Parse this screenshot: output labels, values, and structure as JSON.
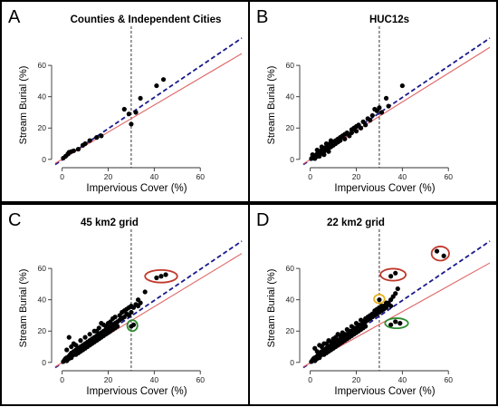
{
  "figure": {
    "panels": [
      "A",
      "B",
      "C",
      "D"
    ]
  },
  "chart_data": [
    {
      "panel": "A",
      "type": "scatter",
      "title": "Counties & Independent Cities",
      "xlabel": "Impervious Cover (%)",
      "ylabel": "Stream Burial (%)",
      "xlim": [
        -3,
        78
      ],
      "ylim": [
        -3,
        78
      ],
      "x_ticks": [
        0,
        20,
        40,
        60
      ],
      "y_ticks": [
        0,
        20,
        40,
        60
      ],
      "threshold_x": 30,
      "lines": [
        {
          "style": "dashed",
          "color": "#1a1a8c",
          "x": [
            -3,
            78
          ],
          "y": [
            -3.3,
            77.4
          ]
        },
        {
          "style": "solid",
          "color": "#e06666",
          "x": [
            -3,
            78
          ],
          "y": [
            -2.5,
            67.5
          ]
        }
      ],
      "points": [
        [
          0.5,
          0.8
        ],
        [
          1.5,
          2
        ],
        [
          2.5,
          3.5
        ],
        [
          3,
          4.5
        ],
        [
          4,
          5
        ],
        [
          5,
          5.5
        ],
        [
          7,
          6.5
        ],
        [
          9,
          9
        ],
        [
          10,
          10
        ],
        [
          12,
          12
        ],
        [
          15,
          14
        ],
        [
          17,
          15
        ],
        [
          27,
          32
        ],
        [
          29,
          29
        ],
        [
          30,
          22.5
        ],
        [
          32,
          30
        ],
        [
          34,
          39
        ],
        [
          41,
          47
        ],
        [
          44,
          51
        ]
      ],
      "point_color": "#000000",
      "highlights": []
    },
    {
      "panel": "B",
      "type": "scatter",
      "title": "HUC12s",
      "xlabel": "Impervious Cover (%)",
      "ylabel": "Stream Burial (%)",
      "xlim": [
        -3,
        78
      ],
      "ylim": [
        -3,
        78
      ],
      "x_ticks": [
        0,
        20,
        40,
        60
      ],
      "y_ticks": [
        0,
        20,
        40,
        60
      ],
      "threshold_x": 30,
      "lines": [
        {
          "style": "dashed",
          "color": "#1a1a8c",
          "x": [
            -3,
            78
          ],
          "y": [
            -3.3,
            77.4
          ]
        },
        {
          "style": "solid",
          "color": "#e06666",
          "x": [
            -3,
            78
          ],
          "y": [
            -2.8,
            71.5
          ]
        }
      ],
      "points": [
        [
          0.5,
          0.5
        ],
        [
          1,
          1.5
        ],
        [
          1.5,
          0.8
        ],
        [
          2,
          2.5
        ],
        [
          2.5,
          1.5
        ],
        [
          3,
          3.5
        ],
        [
          3,
          2
        ],
        [
          3.5,
          4
        ],
        [
          4,
          3
        ],
        [
          4,
          5
        ],
        [
          4.5,
          4.5
        ],
        [
          5,
          6
        ],
        [
          5,
          4
        ],
        [
          5.5,
          5.5
        ],
        [
          6,
          7
        ],
        [
          6,
          5
        ],
        [
          6.5,
          6.5
        ],
        [
          7,
          8
        ],
        [
          7,
          6
        ],
        [
          7.5,
          7.5
        ],
        [
          8,
          9
        ],
        [
          8,
          7
        ],
        [
          8.5,
          10
        ],
        [
          9,
          8
        ],
        [
          9.5,
          9.5
        ],
        [
          10,
          11
        ],
        [
          10,
          9
        ],
        [
          11,
          12
        ],
        [
          11,
          10
        ],
        [
          12,
          11
        ],
        [
          12,
          13
        ],
        [
          13,
          12
        ],
        [
          13,
          14
        ],
        [
          14,
          15
        ],
        [
          15,
          13
        ],
        [
          15,
          16
        ],
        [
          16,
          17
        ],
        [
          17,
          15
        ],
        [
          18,
          19
        ],
        [
          18,
          17
        ],
        [
          19,
          20
        ],
        [
          20,
          21
        ],
        [
          20,
          18
        ],
        [
          21,
          22
        ],
        [
          22,
          20
        ],
        [
          23,
          24
        ],
        [
          24,
          22
        ],
        [
          25,
          26
        ],
        [
          26,
          25
        ],
        [
          27,
          28
        ],
        [
          28,
          32
        ],
        [
          29,
          31
        ],
        [
          30,
          33
        ],
        [
          31,
          30
        ],
        [
          33,
          39
        ],
        [
          34,
          34
        ],
        [
          2,
          0.5
        ],
        [
          1,
          3
        ],
        [
          4,
          2
        ],
        [
          6,
          3
        ],
        [
          8,
          5
        ],
        [
          3,
          6
        ],
        [
          5,
          8
        ],
        [
          9,
          12
        ],
        [
          7,
          10
        ],
        [
          40,
          47
        ]
      ],
      "point_color": "#000000",
      "highlights": []
    },
    {
      "panel": "C",
      "type": "scatter",
      "title": "45 km2 grid",
      "xlabel": "Impervious Cover (%)",
      "ylabel": "Stream Burial (%)",
      "xlim": [
        -3,
        78
      ],
      "ylim": [
        -3,
        78
      ],
      "x_ticks": [
        0,
        20,
        40,
        60
      ],
      "y_ticks": [
        0,
        20,
        40,
        60
      ],
      "threshold_x": 30,
      "lines": [
        {
          "style": "dashed",
          "color": "#1a1a8c",
          "x": [
            -3,
            78
          ],
          "y": [
            -3.3,
            77.4
          ]
        },
        {
          "style": "solid",
          "color": "#e06666",
          "x": [
            -3,
            78
          ],
          "y": [
            -2.8,
            69.5
          ]
        }
      ],
      "points": [
        [
          0.5,
          0.5
        ],
        [
          1,
          1.5
        ],
        [
          1.5,
          2.5
        ],
        [
          2,
          1
        ],
        [
          2,
          3
        ],
        [
          2.5,
          2
        ],
        [
          3,
          4
        ],
        [
          3,
          2.5
        ],
        [
          3.5,
          5
        ],
        [
          4,
          3
        ],
        [
          4,
          6
        ],
        [
          4.5,
          4.5
        ],
        [
          5,
          5
        ],
        [
          5,
          7
        ],
        [
          5.5,
          6
        ],
        [
          6,
          8
        ],
        [
          6,
          5
        ],
        [
          6.5,
          7
        ],
        [
          7,
          9
        ],
        [
          7,
          6
        ],
        [
          7.5,
          8
        ],
        [
          8,
          10
        ],
        [
          8,
          7
        ],
        [
          8.5,
          9
        ],
        [
          9,
          11
        ],
        [
          9,
          8
        ],
        [
          10,
          12
        ],
        [
          10,
          9
        ],
        [
          11,
          13
        ],
        [
          11,
          10
        ],
        [
          12,
          14
        ],
        [
          12,
          11
        ],
        [
          13,
          15
        ],
        [
          13,
          12
        ],
        [
          14,
          16
        ],
        [
          14,
          13
        ],
        [
          15,
          17
        ],
        [
          15,
          14
        ],
        [
          16,
          18
        ],
        [
          16,
          15
        ],
        [
          17,
          19
        ],
        [
          17,
          16
        ],
        [
          18,
          20
        ],
        [
          18,
          17
        ],
        [
          19,
          21
        ],
        [
          19,
          18
        ],
        [
          20,
          22
        ],
        [
          20,
          19
        ],
        [
          21,
          23
        ],
        [
          21,
          20
        ],
        [
          22,
          24
        ],
        [
          22,
          21
        ],
        [
          23,
          25
        ],
        [
          23,
          22
        ],
        [
          24,
          26
        ],
        [
          24,
          23
        ],
        [
          25,
          27
        ],
        [
          26,
          28
        ],
        [
          27,
          29
        ],
        [
          28,
          31
        ],
        [
          29,
          30
        ],
        [
          30,
          32
        ],
        [
          31,
          35
        ],
        [
          32,
          37
        ],
        [
          33,
          36
        ],
        [
          34,
          38
        ],
        [
          3,
          16
        ],
        [
          5,
          12
        ],
        [
          8,
          14
        ],
        [
          10,
          16
        ],
        [
          15,
          20
        ],
        [
          18,
          24
        ],
        [
          20,
          25
        ],
        [
          22,
          28
        ],
        [
          25,
          30
        ],
        [
          27,
          33
        ],
        [
          29,
          35
        ],
        [
          2,
          8
        ],
        [
          4,
          10
        ],
        [
          6,
          11
        ],
        [
          12,
          18
        ],
        [
          14,
          20
        ],
        [
          16,
          22
        ],
        [
          17,
          25
        ],
        [
          19,
          23
        ],
        [
          21,
          26
        ],
        [
          23,
          29
        ],
        [
          26,
          32
        ],
        [
          28,
          34
        ],
        [
          30,
          36
        ],
        [
          33,
          40
        ],
        [
          36,
          45
        ],
        [
          30,
          23
        ],
        [
          31,
          24
        ],
        [
          41,
          54
        ],
        [
          43,
          55
        ],
        [
          45,
          56
        ]
      ],
      "point_color": "#000000",
      "highlights": [
        {
          "color": "#c0392b",
          "cx": 43,
          "cy": 55,
          "rx": 7,
          "ry": 4
        },
        {
          "color": "#2e8b2e",
          "cx": 30.5,
          "cy": 23.5,
          "rx": 2.2,
          "ry": 3.5
        }
      ]
    },
    {
      "panel": "D",
      "type": "scatter",
      "title": "22 km2 grid",
      "xlabel": "Impervious Cover (%)",
      "ylabel": "Stream Burial (%)",
      "xlim": [
        -3,
        78
      ],
      "ylim": [
        -3,
        78
      ],
      "x_ticks": [
        0,
        20,
        40,
        60
      ],
      "y_ticks": [
        0,
        20,
        40,
        60
      ],
      "threshold_x": 30,
      "lines": [
        {
          "style": "dashed",
          "color": "#1a1a8c",
          "x": [
            -3,
            78
          ],
          "y": [
            -3.3,
            77.4
          ]
        },
        {
          "style": "solid",
          "color": "#e06666",
          "x": [
            -3,
            78
          ],
          "y": [
            -2.8,
            63.5
          ]
        }
      ],
      "points": [
        [
          0.5,
          0.5
        ],
        [
          1,
          1.5
        ],
        [
          1.5,
          2.5
        ],
        [
          2,
          1
        ],
        [
          2,
          3
        ],
        [
          2.5,
          2
        ],
        [
          3,
          4
        ],
        [
          3,
          2.5
        ],
        [
          3.5,
          5
        ],
        [
          4,
          3
        ],
        [
          4,
          6
        ],
        [
          4.5,
          4.5
        ],
        [
          5,
          5
        ],
        [
          5,
          7
        ],
        [
          5.5,
          6
        ],
        [
          6,
          8
        ],
        [
          6,
          5
        ],
        [
          6.5,
          7
        ],
        [
          7,
          9
        ],
        [
          7,
          6
        ],
        [
          7.5,
          8
        ],
        [
          8,
          10
        ],
        [
          8,
          7
        ],
        [
          8.5,
          9
        ],
        [
          9,
          11
        ],
        [
          9,
          8
        ],
        [
          10,
          12
        ],
        [
          10,
          9
        ],
        [
          11,
          13
        ],
        [
          11,
          10
        ],
        [
          12,
          14
        ],
        [
          12,
          11
        ],
        [
          13,
          15
        ],
        [
          13,
          12
        ],
        [
          14,
          16
        ],
        [
          14,
          13
        ],
        [
          15,
          17
        ],
        [
          15,
          14
        ],
        [
          16,
          18
        ],
        [
          16,
          15
        ],
        [
          17,
          19
        ],
        [
          17,
          16
        ],
        [
          18,
          20
        ],
        [
          18,
          17
        ],
        [
          19,
          21
        ],
        [
          19,
          18
        ],
        [
          20,
          22
        ],
        [
          20,
          19
        ],
        [
          21,
          23
        ],
        [
          21,
          20
        ],
        [
          22,
          24
        ],
        [
          22,
          21
        ],
        [
          23,
          25
        ],
        [
          23,
          22
        ],
        [
          24,
          26
        ],
        [
          24,
          23
        ],
        [
          25,
          27
        ],
        [
          26,
          28
        ],
        [
          27,
          29
        ],
        [
          28,
          30
        ],
        [
          29,
          31
        ],
        [
          30,
          32
        ],
        [
          31,
          33
        ],
        [
          32,
          34
        ],
        [
          33,
          35
        ],
        [
          34,
          37
        ],
        [
          35,
          36
        ],
        [
          2,
          9
        ],
        [
          4,
          11
        ],
        [
          6,
          12
        ],
        [
          8,
          14
        ],
        [
          10,
          15
        ],
        [
          12,
          18
        ],
        [
          14,
          19
        ],
        [
          16,
          21
        ],
        [
          18,
          23
        ],
        [
          20,
          25
        ],
        [
          22,
          27
        ],
        [
          24,
          28
        ],
        [
          26,
          30
        ],
        [
          28,
          33
        ],
        [
          30,
          35
        ],
        [
          32,
          36
        ],
        [
          34,
          38
        ],
        [
          3,
          7
        ],
        [
          5,
          10
        ],
        [
          7,
          12
        ],
        [
          9,
          13
        ],
        [
          11,
          16
        ],
        [
          13,
          17
        ],
        [
          15,
          18
        ],
        [
          17,
          20
        ],
        [
          19,
          22
        ],
        [
          21,
          24
        ],
        [
          23,
          26
        ],
        [
          25,
          29
        ],
        [
          27,
          31
        ],
        [
          29,
          34
        ],
        [
          31,
          36
        ],
        [
          33,
          38
        ],
        [
          35,
          40
        ],
        [
          37,
          44
        ],
        [
          38,
          47
        ],
        [
          36,
          42
        ],
        [
          30,
          40
        ],
        [
          35,
          55
        ],
        [
          37,
          57
        ],
        [
          35,
          24
        ],
        [
          37,
          26
        ],
        [
          39,
          25
        ],
        [
          55,
          71
        ],
        [
          58,
          68
        ]
      ],
      "point_color": "#000000",
      "highlights": [
        {
          "color": "#c0392b",
          "cx": 36,
          "cy": 56,
          "rx": 5.5,
          "ry": 3.8
        },
        {
          "color": "#e6b020",
          "cx": 30,
          "cy": 40.5,
          "rx": 2.3,
          "ry": 2.8
        },
        {
          "color": "#2e8b2e",
          "cx": 37.5,
          "cy": 25,
          "rx": 5,
          "ry": 3.2
        },
        {
          "color": "#c0392b",
          "cx": 56.5,
          "cy": 69.5,
          "rx": 3.8,
          "ry": 4.5
        }
      ]
    }
  ]
}
